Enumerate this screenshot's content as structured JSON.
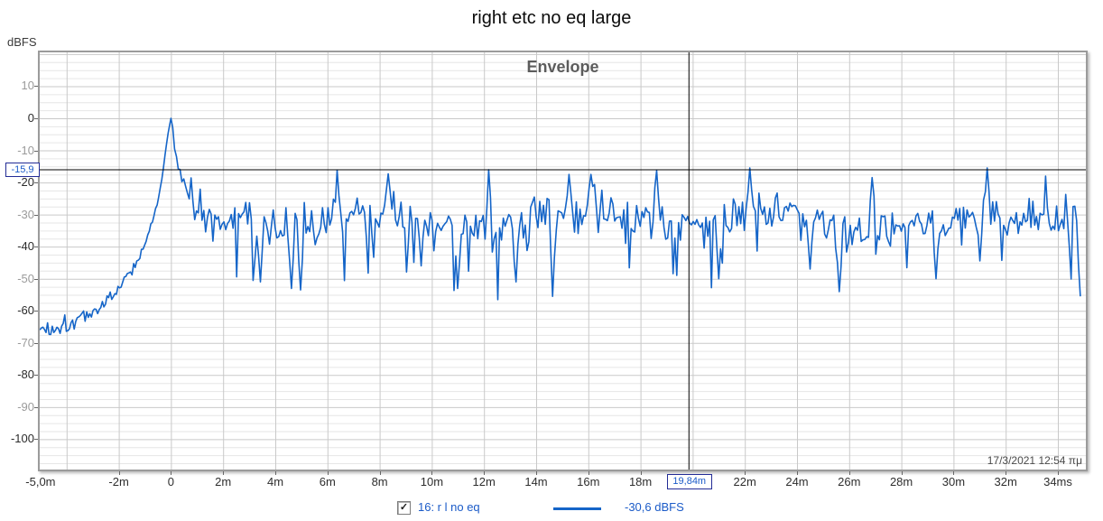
{
  "page_title": "right etc no eq large",
  "axis_unit_label": "dBFS",
  "chart_data": {
    "type": "line",
    "title": "Envelope",
    "x_unit": "ms",
    "y_unit": "dBFS",
    "xlim_ms": [
      -5.0,
      35.1
    ],
    "ylim_db": [
      -110,
      20.5
    ],
    "grid": true,
    "x_gridline_step_ms": 2,
    "y_gridline_minor_db": 2.5,
    "y_gridline_major_db": 10,
    "x_ticks": [
      {
        "t": -5,
        "label": "-5,0m"
      },
      {
        "t": -2,
        "label": "-2m"
      },
      {
        "t": 0,
        "label": "0"
      },
      {
        "t": 2,
        "label": "2m"
      },
      {
        "t": 4,
        "label": "4m"
      },
      {
        "t": 6,
        "label": "6m"
      },
      {
        "t": 8,
        "label": "8m"
      },
      {
        "t": 10,
        "label": "10m"
      },
      {
        "t": 12,
        "label": "12m"
      },
      {
        "t": 14,
        "label": "14m"
      },
      {
        "t": 16,
        "label": "16m"
      },
      {
        "t": 18,
        "label": "18m"
      },
      {
        "t": 22,
        "label": "22m"
      },
      {
        "t": 24,
        "label": "24m"
      },
      {
        "t": 26,
        "label": "26m"
      },
      {
        "t": 28,
        "label": "28m"
      },
      {
        "t": 30,
        "label": "30m"
      },
      {
        "t": 32,
        "label": "32m"
      },
      {
        "t": 34,
        "label": "34ms"
      }
    ],
    "y_ticks": [
      {
        "v": 10,
        "label": "10",
        "strong": false
      },
      {
        "v": 0,
        "label": "0",
        "strong": true
      },
      {
        "v": -10,
        "label": "-10",
        "strong": false
      },
      {
        "v": -20,
        "label": "-20",
        "strong": true
      },
      {
        "v": -30,
        "label": "-30",
        "strong": false
      },
      {
        "v": -40,
        "label": "-40",
        "strong": true
      },
      {
        "v": -50,
        "label": "-50",
        "strong": false
      },
      {
        "v": -60,
        "label": "-60",
        "strong": true
      },
      {
        "v": -70,
        "label": "-70",
        "strong": false
      },
      {
        "v": -80,
        "label": "-80",
        "strong": true
      },
      {
        "v": -90,
        "label": "-90",
        "strong": false
      },
      {
        "v": -100,
        "label": "-100",
        "strong": true
      }
    ],
    "cursor": {
      "x_ms": 19.84,
      "y_db": -15.9,
      "x_label": "19,84m",
      "y_label": "-15,9"
    },
    "timestamp": "17/3/2021 12:54 πμ",
    "series": [
      {
        "name": "16: r l no eq",
        "color": "#1565c8",
        "value_at_cursor_db": -30.6,
        "peak": {
          "t_ms": 0,
          "db": 0
        },
        "rise_envelope": [
          [
            -5.1,
            -65
          ],
          [
            -4.6,
            -66
          ],
          [
            -4.2,
            -64
          ],
          [
            -3.8,
            -63.5
          ],
          [
            -3.4,
            -62
          ],
          [
            -3.0,
            -60.5
          ],
          [
            -2.6,
            -58
          ],
          [
            -2.2,
            -54.5
          ],
          [
            -1.8,
            -50.5
          ],
          [
            -1.4,
            -46
          ],
          [
            -1.0,
            -39.5
          ],
          [
            -0.7,
            -32
          ],
          [
            -0.5,
            -26
          ],
          [
            -0.35,
            -19
          ],
          [
            -0.2,
            -10
          ],
          [
            -0.1,
            -4
          ],
          [
            0,
            0
          ]
        ],
        "decay_envelope": [
          [
            0,
            0
          ],
          [
            0.1,
            -6
          ],
          [
            0.25,
            -13
          ],
          [
            0.4,
            -18
          ],
          [
            0.6,
            -22
          ],
          [
            0.9,
            -27
          ],
          [
            1.3,
            -30
          ],
          [
            2.0,
            -31.5
          ]
        ],
        "noise_floor_mean_db": -31.5,
        "noise_floor_spread_db": 9.5,
        "spikes_up": [
          [
            6.4,
            -16.2
          ],
          [
            8.35,
            -17.3
          ],
          [
            12.2,
            -16.0
          ],
          [
            16.1,
            -17.5
          ],
          [
            18.6,
            -16.3
          ],
          [
            22.2,
            -15.5
          ],
          [
            26.9,
            -18.5
          ],
          [
            31.3,
            -15.5
          ],
          [
            33.5,
            -18.0
          ]
        ],
        "dips_down": [
          [
            3.4,
            -51
          ],
          [
            4.65,
            -53
          ],
          [
            4.95,
            -53.5
          ],
          [
            9.6,
            -46
          ],
          [
            11.0,
            -53
          ],
          [
            13.2,
            -51
          ],
          [
            14.6,
            -55.5
          ],
          [
            21.0,
            -50
          ],
          [
            24.5,
            -47
          ],
          [
            25.6,
            -54
          ],
          [
            29.3,
            -50
          ],
          [
            34.85,
            -55.5
          ]
        ],
        "anchor_points": [
          [
            19.84,
            -30.6
          ]
        ],
        "seed": 1337,
        "t_end_ms": 34.93
      }
    ]
  },
  "legend": {
    "checked": true,
    "check_glyph": "✓",
    "name": "16: r l no eq",
    "value": "-30,6 dBFS"
  },
  "colors": {
    "trace": "#1565c8",
    "cursor_line": "#000000",
    "cursor_text": "#1b5bc8",
    "cursor_box_border": "#232c96",
    "grid_minor": "#e6e6e6",
    "grid_major": "#c9c9c9",
    "tick_label_strong": "#2b2b2b",
    "tick_label_weak": "#9b9b9b",
    "frame": "#9b9b9b",
    "chart_title": "#5c5c5c",
    "timestamp": "#4a4a4a"
  }
}
